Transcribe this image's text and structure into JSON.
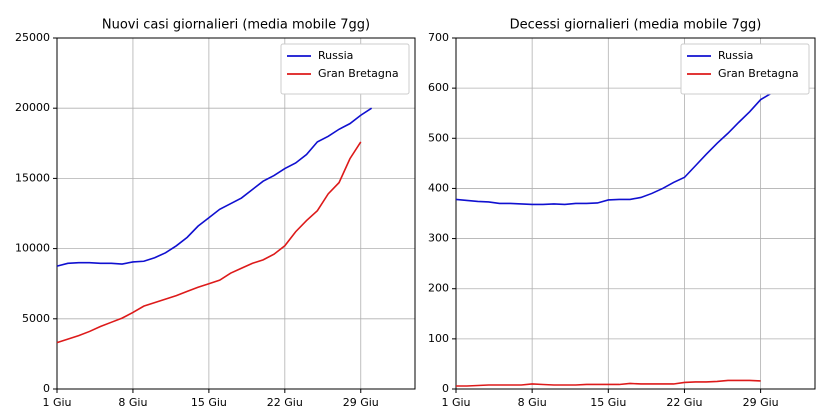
{
  "chart_data": [
    {
      "type": "line",
      "title": "Nuovi casi giornalieri (media mobile 7gg)",
      "x": [
        1,
        2,
        3,
        4,
        5,
        6,
        7,
        8,
        9,
        10,
        11,
        12,
        13,
        14,
        15,
        16,
        17,
        18,
        19,
        20,
        21,
        22,
        23,
        24,
        25,
        26,
        27,
        28,
        29,
        30
      ],
      "series": [
        {
          "name": "Russia",
          "color": "#1010d0",
          "values": [
            8750,
            8950,
            9000,
            9000,
            8950,
            8950,
            8900,
            9050,
            9100,
            9350,
            9700,
            10200,
            10800,
            11600,
            12200,
            12800,
            13200,
            13600,
            14200,
            14800,
            15200,
            15700,
            16100,
            16700,
            17600,
            18000,
            18500,
            18900,
            19500,
            20000
          ]
        },
        {
          "name": "Gran Bretagna",
          "color": "#dd1a1a",
          "values": [
            3300,
            3550,
            3800,
            4100,
            4450,
            4750,
            5050,
            5450,
            5900,
            6150,
            6400,
            6650,
            6950,
            7250,
            7500,
            7750,
            8250,
            8600,
            8950,
            9200,
            9600,
            10200,
            11200,
            12000,
            12700,
            13900,
            14700,
            16400,
            17600,
            null
          ]
        }
      ],
      "xlim": [
        1,
        34
      ],
      "xticks": [
        {
          "value": 1,
          "label": "1 Giu"
        },
        {
          "value": 8,
          "label": "8 Giu"
        },
        {
          "value": 15,
          "label": "15 Giu"
        },
        {
          "value": 22,
          "label": "22 Giu"
        },
        {
          "value": 29,
          "label": "29 Giu"
        }
      ],
      "ylim": [
        0,
        25000
      ],
      "yticks": [
        0,
        5000,
        10000,
        15000,
        20000,
        25000
      ],
      "grid": true,
      "legend": "upper right"
    },
    {
      "type": "line",
      "title": "Decessi giornalieri (media mobile 7gg)",
      "x": [
        1,
        2,
        3,
        4,
        5,
        6,
        7,
        8,
        9,
        10,
        11,
        12,
        13,
        14,
        15,
        16,
        17,
        18,
        19,
        20,
        21,
        22,
        23,
        24,
        25,
        26,
        27,
        28,
        29,
        30
      ],
      "series": [
        {
          "name": "Russia",
          "color": "#1010d0",
          "values": [
            378,
            376,
            374,
            373,
            370,
            370,
            369,
            368,
            368,
            369,
            368,
            370,
            370,
            371,
            377,
            378,
            378,
            382,
            390,
            400,
            412,
            422,
            445,
            468,
            490,
            510,
            532,
            553,
            577,
            590
          ]
        },
        {
          "name": "Gran Bretagna",
          "color": "#dd1a1a",
          "values": [
            6,
            6,
            7,
            8,
            8,
            8,
            8,
            10,
            9,
            8,
            8,
            8,
            9,
            9,
            9,
            9,
            11,
            10,
            10,
            10,
            10,
            13,
            14,
            14,
            15,
            17,
            17,
            17,
            16,
            null
          ]
        }
      ],
      "xlim": [
        1,
        34
      ],
      "xticks": [
        {
          "value": 1,
          "label": "1 Giu"
        },
        {
          "value": 8,
          "label": "8 Giu"
        },
        {
          "value": 15,
          "label": "15 Giu"
        },
        {
          "value": 22,
          "label": "22 Giu"
        },
        {
          "value": 29,
          "label": "29 Giu"
        }
      ],
      "ylim": [
        0,
        700
      ],
      "yticks": [
        0,
        100,
        200,
        300,
        400,
        500,
        600,
        700
      ],
      "grid": true,
      "legend": "upper right"
    }
  ]
}
